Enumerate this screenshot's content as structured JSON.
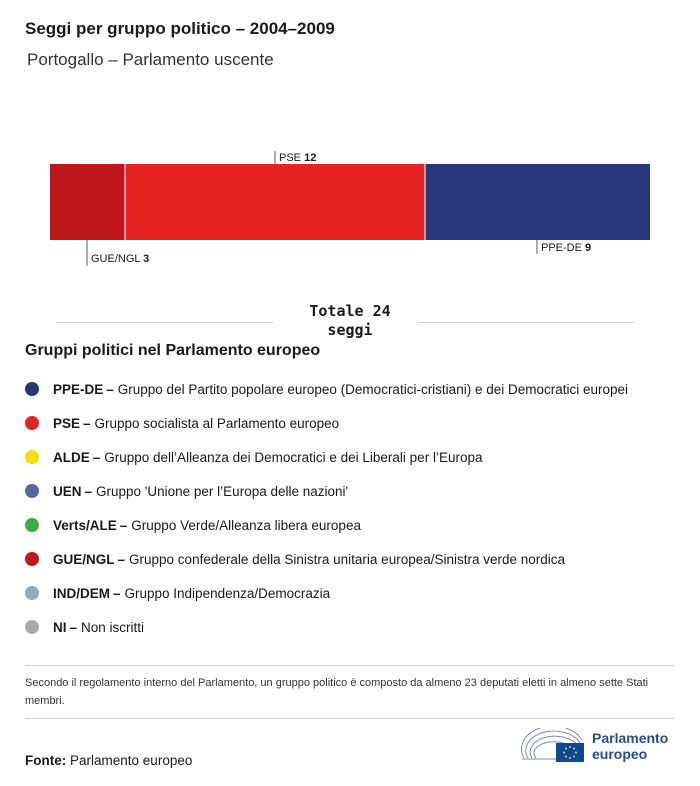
{
  "header": {
    "title": "Seggi per gruppo politico – 2004–2009",
    "subtitle": "Portogallo – Parlamento uscente"
  },
  "chart_data": {
    "type": "bar",
    "orientation": "horizontal-stacked",
    "segments": [
      {
        "name": "GUE/NGL",
        "value": 3,
        "color": "#c0171c",
        "label_position": "below"
      },
      {
        "name": "PSE",
        "value": 12,
        "color": "#e52323",
        "label_position": "above"
      },
      {
        "name": "PPE-DE",
        "value": 9,
        "color": "#283779",
        "label_position": "below"
      }
    ],
    "total_label": "Totale 24 seggi"
  },
  "legend": {
    "title": "Gruppi politici nel Parlamento europeo",
    "items": [
      {
        "abbr": "PPE-DE",
        "desc": "Gruppo del Partito popolare europeo (Democratici-cristiani) e dei Democratici europei",
        "color": "#283779"
      },
      {
        "abbr": "PSE",
        "desc": "Gruppo socialista al Parlamento europeo",
        "color": "#e52323"
      },
      {
        "abbr": "ALDE",
        "desc": "Gruppo dell’Alleanza dei Democratici e dei Liberali per l’Europa",
        "color": "#f5dd08"
      },
      {
        "abbr": "UEN",
        "desc": "Gruppo 'Unione per l’Europa delle nazioni'",
        "color": "#56699a"
      },
      {
        "abbr": "Verts/ALE",
        "desc": "Gruppo Verde/Alleanza libera europea",
        "color": "#3fa847"
      },
      {
        "abbr": "GUE/NGL",
        "desc": "Gruppo confederale della Sinistra unitaria europea/Sinistra verde nordica",
        "color": "#c0171c"
      },
      {
        "abbr": "IND/DEM",
        "desc": "Gruppo Indipendenza/Democrazia",
        "color": "#8eaabd"
      },
      {
        "abbr": "NI",
        "desc": "Non iscritti",
        "color": "#aaaaaa"
      }
    ]
  },
  "note": "Secondo il regolamento interno del Parlamento, un gruppo politico è composto da almeno 23 deputati eletti in almeno sette Stati membri.",
  "source": {
    "label": "Fonte:",
    "value": "Parlamento europeo"
  },
  "logo": {
    "line1": "Parlamento",
    "line2": "europeo",
    "icon": "ep-hemicycle-flag-logo",
    "brand_color": "#2a4a8a",
    "flag_color": "#0e47a1"
  }
}
